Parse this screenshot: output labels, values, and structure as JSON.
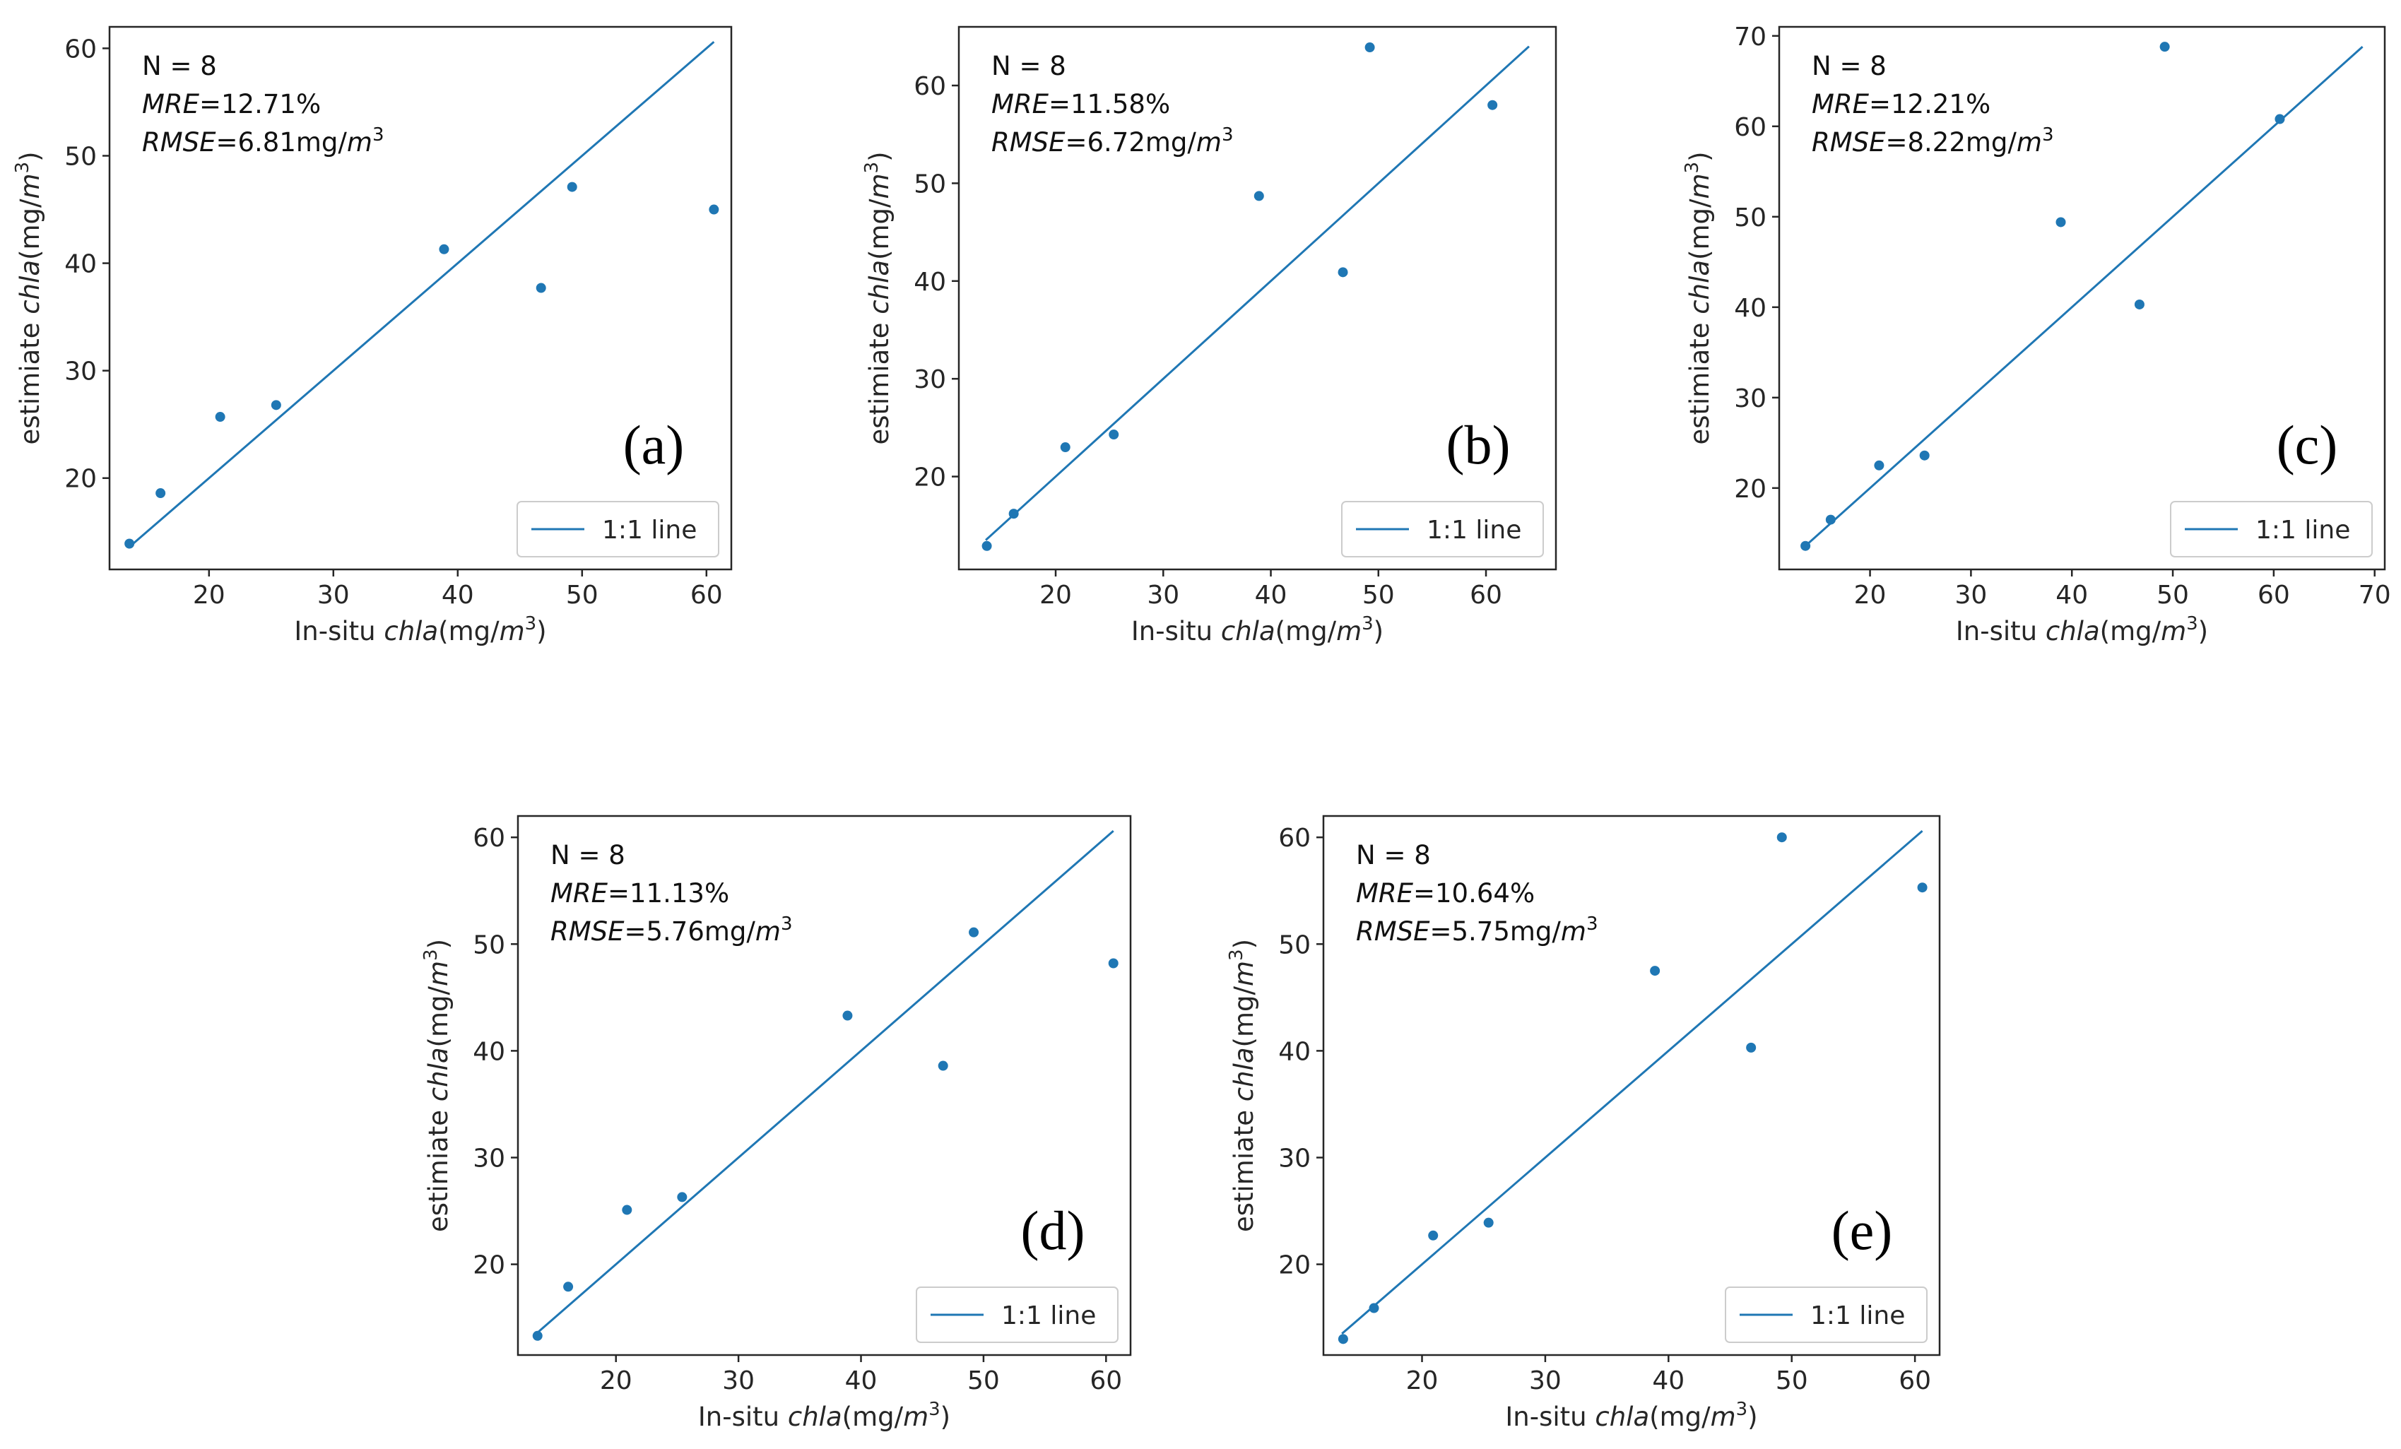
{
  "chart_data": [
    {
      "type": "scatter",
      "panel": "(a)",
      "xlabel": {
        "prefix": "In-situ ",
        "var": "chla",
        "unit": "(mg/",
        "unit_var": "m",
        "sup": "3",
        "close": ")"
      },
      "ylabel": {
        "prefix": "estimiate ",
        "var": "chla",
        "unit": "(mg/",
        "unit_var": "m",
        "sup": "3",
        "close": ")"
      },
      "xlim": [
        12,
        62
      ],
      "ylim": [
        11.5,
        62
      ],
      "xticks": [
        20,
        30,
        40,
        50,
        60
      ],
      "yticks": [
        20,
        30,
        40,
        50,
        60
      ],
      "annotation": {
        "n": "N = 8",
        "mre_label": "MRE",
        "mre_value": "=12.71%",
        "rmse_label": "RMSE",
        "rmse_value": "=6.81mg/",
        "unit_var": "m",
        "sup": "3"
      },
      "legend": "1:1 line",
      "line": [
        [
          13.5,
          13.5
        ],
        [
          60.6,
          60.6
        ]
      ],
      "points": [
        [
          13.6,
          13.9
        ],
        [
          16.1,
          18.6
        ],
        [
          20.9,
          25.7
        ],
        [
          25.4,
          26.8
        ],
        [
          38.9,
          41.3
        ],
        [
          46.7,
          37.7
        ],
        [
          49.2,
          47.1
        ],
        [
          60.6,
          45.0
        ]
      ]
    },
    {
      "type": "scatter",
      "panel": "(b)",
      "xlabel": {
        "prefix": "In-situ ",
        "var": "chla",
        "unit": "(mg/",
        "unit_var": "m",
        "sup": "3",
        "close": ")"
      },
      "ylabel": {
        "prefix": "estimiate ",
        "var": "chla",
        "unit": "(mg/",
        "unit_var": "m",
        "sup": "3",
        "close": ")"
      },
      "xlim": [
        11,
        66.5
      ],
      "ylim": [
        10.5,
        66
      ],
      "xticks": [
        20,
        30,
        40,
        50,
        60
      ],
      "yticks": [
        20,
        30,
        40,
        50,
        60
      ],
      "annotation": {
        "n": "N = 8",
        "mre_label": "MRE",
        "mre_value": "=11.58%",
        "rmse_label": "RMSE",
        "rmse_value": "=6.72mg/",
        "unit_var": "m",
        "sup": "3"
      },
      "legend": "1:1 line",
      "line": [
        [
          13.5,
          13.5
        ],
        [
          64.0,
          64.0
        ]
      ],
      "points": [
        [
          13.6,
          12.9
        ],
        [
          16.1,
          16.2
        ],
        [
          20.9,
          23.0
        ],
        [
          25.4,
          24.3
        ],
        [
          38.9,
          48.7
        ],
        [
          46.7,
          40.9
        ],
        [
          49.2,
          63.9
        ],
        [
          60.6,
          58.0
        ]
      ]
    },
    {
      "type": "scatter",
      "panel": "(c)",
      "xlabel": {
        "prefix": "In-situ ",
        "var": "chla",
        "unit": "(mg/",
        "unit_var": "m",
        "sup": "3",
        "close": ")"
      },
      "ylabel": {
        "prefix": "estimiate ",
        "var": "chla",
        "unit": "(mg/",
        "unit_var": "m",
        "sup": "3",
        "close": ")"
      },
      "xlim": [
        11,
        71
      ],
      "ylim": [
        11,
        71
      ],
      "xticks": [
        20,
        30,
        40,
        50,
        60,
        70
      ],
      "yticks": [
        20,
        30,
        40,
        50,
        60,
        70
      ],
      "annotation": {
        "n": "N = 8",
        "mre_label": "MRE",
        "mre_value": "=12.21%",
        "rmse_label": "RMSE",
        "rmse_value": "=8.22mg/",
        "unit_var": "m",
        "sup": "3"
      },
      "legend": "1:1 line",
      "line": [
        [
          13.5,
          13.5
        ],
        [
          68.8,
          68.8
        ]
      ],
      "points": [
        [
          13.6,
          13.6
        ],
        [
          16.1,
          16.5
        ],
        [
          20.9,
          22.5
        ],
        [
          25.4,
          23.6
        ],
        [
          38.9,
          49.4
        ],
        [
          46.7,
          40.3
        ],
        [
          49.2,
          68.8
        ],
        [
          60.6,
          60.8
        ]
      ]
    },
    {
      "type": "scatter",
      "panel": "(d)",
      "xlabel": {
        "prefix": "In-situ ",
        "var": "chla",
        "unit": "(mg/",
        "unit_var": "m",
        "sup": "3",
        "close": ")"
      },
      "ylabel": {
        "prefix": "estimiate ",
        "var": "chla",
        "unit": "(mg/",
        "unit_var": "m",
        "sup": "3",
        "close": ")"
      },
      "xlim": [
        12,
        62
      ],
      "ylim": [
        11.5,
        62
      ],
      "xticks": [
        20,
        30,
        40,
        50,
        60
      ],
      "yticks": [
        20,
        30,
        40,
        50,
        60
      ],
      "annotation": {
        "n": "N = 8",
        "mre_label": "MRE",
        "mre_value": "=11.13%",
        "rmse_label": "RMSE",
        "rmse_value": "=5.76mg/",
        "unit_var": "m",
        "sup": "3"
      },
      "legend": "1:1 line",
      "line": [
        [
          13.5,
          13.5
        ],
        [
          60.6,
          60.6
        ]
      ],
      "points": [
        [
          13.6,
          13.3
        ],
        [
          16.1,
          17.9
        ],
        [
          20.9,
          25.1
        ],
        [
          25.4,
          26.3
        ],
        [
          38.9,
          43.3
        ],
        [
          46.7,
          38.6
        ],
        [
          49.2,
          51.1
        ],
        [
          60.6,
          48.2
        ]
      ]
    },
    {
      "type": "scatter",
      "panel": "(e)",
      "xlabel": {
        "prefix": "In-situ ",
        "var": "chla",
        "unit": "(mg/",
        "unit_var": "m",
        "sup": "3",
        "close": ")"
      },
      "ylabel": {
        "prefix": "estimiate ",
        "var": "chla",
        "unit": "(mg/",
        "unit_var": "m",
        "sup": "3",
        "close": ")"
      },
      "xlim": [
        12,
        62
      ],
      "ylim": [
        11.5,
        62
      ],
      "xticks": [
        20,
        30,
        40,
        50,
        60
      ],
      "yticks": [
        20,
        30,
        40,
        50,
        60
      ],
      "annotation": {
        "n": "N = 8",
        "mre_label": "MRE",
        "mre_value": "=10.64%",
        "rmse_label": "RMSE",
        "rmse_value": "=5.75mg/",
        "unit_var": "m",
        "sup": "3"
      },
      "legend": "1:1 line",
      "line": [
        [
          13.5,
          13.5
        ],
        [
          60.6,
          60.6
        ]
      ],
      "points": [
        [
          13.6,
          13.0
        ],
        [
          16.1,
          15.9
        ],
        [
          20.9,
          22.7
        ],
        [
          25.4,
          23.9
        ],
        [
          38.9,
          47.5
        ],
        [
          46.7,
          40.3
        ],
        [
          49.2,
          60.0
        ],
        [
          60.6,
          55.3
        ]
      ]
    }
  ],
  "colors": {
    "series": "#1f77b4",
    "axes": "#262626",
    "legend_border": "#cccccc"
  }
}
